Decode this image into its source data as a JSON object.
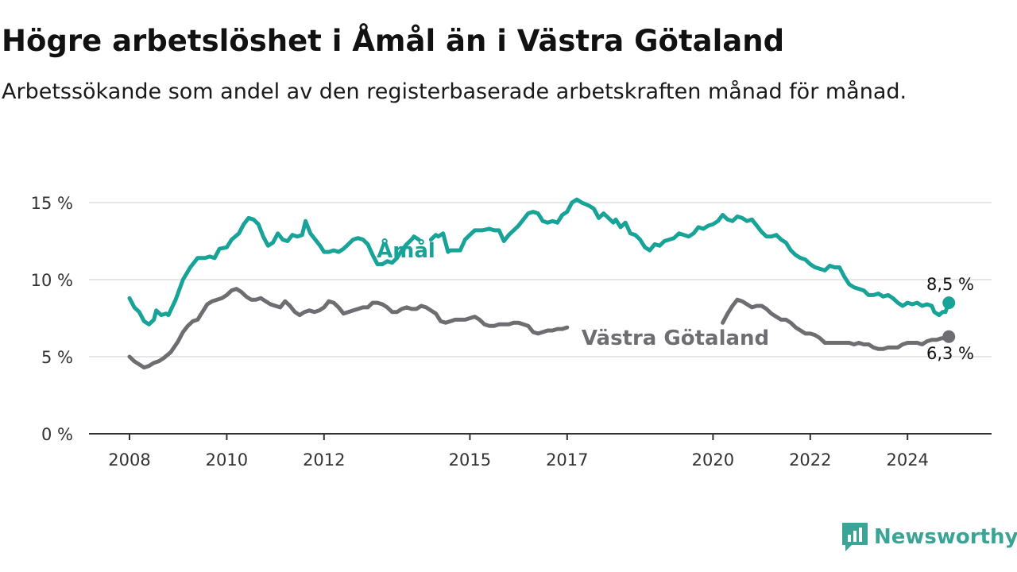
{
  "title": "Högre arbetslöshet i Åmål än i Västra Götaland",
  "subtitle": "Arbetssökande som andel av den registerbaserade arbetskraften månad för månad.",
  "brand": {
    "name": "Newsworthy",
    "icon": "newsworthy-logo-icon",
    "color": "#3aa597"
  },
  "chart_data": {
    "type": "line",
    "ylim": [
      0,
      15
    ],
    "xlim": [
      2008.0,
      2024.9
    ],
    "y_ticks": [
      0,
      5,
      10,
      15
    ],
    "y_tick_labels": [
      "0 %",
      "5 %",
      "10 %",
      "15 %"
    ],
    "x_ticks": [
      2008,
      2010,
      2012,
      2015,
      2017,
      2020,
      2022,
      2024
    ],
    "x_tick_labels": [
      "2008",
      "2010",
      "2012",
      "2015",
      "2017",
      "2020",
      "2022",
      "2024"
    ],
    "grid": "horizontal",
    "legend": "inline labels",
    "series": [
      {
        "name": "Åmål",
        "color": "#17a397",
        "end_label": "8,5 %",
        "points": [
          [
            2008.0,
            8.8
          ],
          [
            2008.1,
            8.2
          ],
          [
            2008.2,
            7.9
          ],
          [
            2008.3,
            7.3
          ],
          [
            2008.4,
            7.1
          ],
          [
            2008.5,
            7.4
          ],
          [
            2008.55,
            8.0
          ],
          [
            2008.65,
            7.7
          ],
          [
            2008.75,
            7.8
          ],
          [
            2008.8,
            7.7
          ],
          [
            2008.95,
            8.7
          ],
          [
            2009.1,
            10.0
          ],
          [
            2009.25,
            10.8
          ],
          [
            2009.4,
            11.4
          ],
          [
            2009.55,
            11.4
          ],
          [
            2009.65,
            11.5
          ],
          [
            2009.75,
            11.4
          ],
          [
            2009.85,
            12.0
          ],
          [
            2010.0,
            12.1
          ],
          [
            2010.1,
            12.6
          ],
          [
            2010.25,
            13.0
          ],
          [
            2010.35,
            13.6
          ],
          [
            2010.45,
            14.0
          ],
          [
            2010.55,
            13.9
          ],
          [
            2010.65,
            13.6
          ],
          [
            2010.75,
            12.8
          ],
          [
            2010.85,
            12.2
          ],
          [
            2010.95,
            12.4
          ],
          [
            2011.05,
            13.0
          ],
          [
            2011.15,
            12.6
          ],
          [
            2011.25,
            12.5
          ],
          [
            2011.35,
            12.9
          ],
          [
            2011.45,
            12.8
          ],
          [
            2011.55,
            12.9
          ],
          [
            2011.62,
            13.8
          ],
          [
            2011.72,
            13.0
          ],
          [
            2011.82,
            12.6
          ],
          [
            2011.92,
            12.2
          ],
          [
            2012.0,
            11.8
          ],
          [
            2012.1,
            11.8
          ],
          [
            2012.2,
            11.9
          ],
          [
            2012.3,
            11.8
          ],
          [
            2012.4,
            12.0
          ],
          [
            2012.5,
            12.3
          ],
          [
            2012.6,
            12.6
          ],
          [
            2012.7,
            12.7
          ],
          [
            2012.8,
            12.6
          ],
          [
            2012.9,
            12.3
          ],
          [
            2013.0,
            11.6
          ],
          [
            2013.1,
            11.0
          ],
          [
            2013.2,
            11.0
          ],
          [
            2013.3,
            11.2
          ],
          [
            2013.4,
            11.1
          ],
          [
            2013.5,
            11.4
          ],
          [
            2013.6,
            11.9
          ],
          [
            2013.7,
            12.3
          ],
          [
            2013.8,
            12.6
          ],
          [
            2013.85,
            12.8
          ],
          [
            2013.95,
            12.6
          ],
          null,
          [
            2014.2,
            12.6
          ],
          [
            2014.3,
            12.9
          ],
          [
            2014.35,
            12.8
          ],
          [
            2014.45,
            13.0
          ],
          [
            2014.55,
            11.8
          ],
          [
            2014.6,
            11.9
          ],
          [
            2014.8,
            11.9
          ],
          [
            2014.9,
            12.6
          ],
          [
            2015.0,
            12.9
          ],
          [
            2015.1,
            13.2
          ],
          [
            2015.25,
            13.2
          ],
          [
            2015.4,
            13.3
          ],
          [
            2015.5,
            13.2
          ],
          [
            2015.6,
            13.2
          ],
          [
            2015.7,
            12.5
          ],
          [
            2015.8,
            12.9
          ],
          [
            2015.9,
            13.2
          ],
          [
            2016.0,
            13.5
          ],
          [
            2016.1,
            13.9
          ],
          [
            2016.2,
            14.3
          ],
          [
            2016.3,
            14.4
          ],
          [
            2016.4,
            14.3
          ],
          [
            2016.5,
            13.8
          ],
          [
            2016.6,
            13.7
          ],
          [
            2016.7,
            13.8
          ],
          [
            2016.8,
            13.7
          ],
          [
            2016.9,
            14.2
          ],
          [
            2017.0,
            14.4
          ],
          [
            2017.1,
            15.0
          ],
          [
            2017.2,
            15.2
          ],
          [
            2017.3,
            15.0
          ],
          [
            2017.45,
            14.8
          ],
          [
            2017.55,
            14.6
          ],
          [
            2017.65,
            14.0
          ],
          [
            2017.75,
            14.3
          ],
          [
            2017.85,
            14.0
          ],
          [
            2017.95,
            13.7
          ],
          [
            2018.0,
            13.9
          ],
          [
            2018.1,
            13.4
          ],
          [
            2018.2,
            13.7
          ],
          [
            2018.3,
            13.0
          ],
          [
            2018.4,
            12.9
          ],
          [
            2018.5,
            12.6
          ],
          [
            2018.6,
            12.1
          ],
          [
            2018.7,
            11.9
          ],
          [
            2018.8,
            12.3
          ],
          [
            2018.9,
            12.2
          ],
          [
            2019.0,
            12.5
          ],
          [
            2019.1,
            12.6
          ],
          [
            2019.2,
            12.7
          ],
          [
            2019.3,
            13.0
          ],
          [
            2019.4,
            12.9
          ],
          [
            2019.5,
            12.8
          ],
          [
            2019.6,
            13.0
          ],
          [
            2019.7,
            13.4
          ],
          [
            2019.8,
            13.3
          ],
          [
            2019.9,
            13.5
          ],
          [
            2020.0,
            13.6
          ],
          [
            2020.1,
            13.8
          ],
          [
            2020.2,
            14.2
          ],
          [
            2020.3,
            13.9
          ],
          [
            2020.4,
            13.8
          ],
          [
            2020.5,
            14.1
          ],
          [
            2020.6,
            14.0
          ],
          [
            2020.7,
            13.8
          ],
          [
            2020.8,
            13.9
          ],
          [
            2020.9,
            13.5
          ],
          [
            2021.0,
            13.1
          ],
          [
            2021.1,
            12.8
          ],
          [
            2021.2,
            12.8
          ],
          [
            2021.3,
            12.9
          ],
          [
            2021.4,
            12.6
          ],
          [
            2021.5,
            12.4
          ],
          [
            2021.6,
            11.9
          ],
          [
            2021.7,
            11.6
          ],
          [
            2021.8,
            11.4
          ],
          [
            2021.9,
            11.3
          ],
          [
            2022.0,
            11.0
          ],
          [
            2022.1,
            10.8
          ],
          [
            2022.2,
            10.7
          ],
          [
            2022.3,
            10.6
          ],
          [
            2022.4,
            10.9
          ],
          [
            2022.5,
            10.8
          ],
          [
            2022.6,
            10.8
          ],
          [
            2022.7,
            10.2
          ],
          [
            2022.8,
            9.7
          ],
          [
            2022.9,
            9.5
          ],
          [
            2023.0,
            9.4
          ],
          [
            2023.1,
            9.3
          ],
          [
            2023.2,
            9.0
          ],
          [
            2023.3,
            9.0
          ],
          [
            2023.4,
            9.1
          ],
          [
            2023.5,
            8.9
          ],
          [
            2023.6,
            9.0
          ],
          [
            2023.7,
            8.8
          ],
          [
            2023.8,
            8.5
          ],
          [
            2023.9,
            8.3
          ],
          [
            2024.0,
            8.5
          ],
          [
            2024.1,
            8.4
          ],
          [
            2024.2,
            8.5
          ],
          [
            2024.3,
            8.3
          ],
          [
            2024.4,
            8.4
          ],
          [
            2024.5,
            8.3
          ],
          [
            2024.55,
            7.9
          ],
          [
            2024.65,
            7.7
          ],
          [
            2024.72,
            7.9
          ],
          [
            2024.78,
            7.9
          ],
          [
            2024.85,
            8.5
          ]
        ]
      },
      {
        "name": "Västra Götaland",
        "color": "#6d6d72",
        "end_label": "6,3 %",
        "points": [
          [
            2008.0,
            5.0
          ],
          [
            2008.1,
            4.7
          ],
          [
            2008.2,
            4.5
          ],
          [
            2008.3,
            4.3
          ],
          [
            2008.4,
            4.4
          ],
          [
            2008.5,
            4.6
          ],
          [
            2008.6,
            4.7
          ],
          [
            2008.7,
            4.9
          ],
          [
            2008.85,
            5.3
          ],
          [
            2009.0,
            6.0
          ],
          [
            2009.1,
            6.6
          ],
          [
            2009.2,
            7.0
          ],
          [
            2009.3,
            7.3
          ],
          [
            2009.4,
            7.4
          ],
          [
            2009.5,
            7.9
          ],
          [
            2009.6,
            8.4
          ],
          [
            2009.7,
            8.6
          ],
          [
            2009.8,
            8.7
          ],
          [
            2009.9,
            8.8
          ],
          [
            2010.0,
            9.0
          ],
          [
            2010.1,
            9.3
          ],
          [
            2010.2,
            9.4
          ],
          [
            2010.3,
            9.2
          ],
          [
            2010.4,
            8.9
          ],
          [
            2010.5,
            8.7
          ],
          [
            2010.6,
            8.7
          ],
          [
            2010.7,
            8.8
          ],
          [
            2010.8,
            8.6
          ],
          [
            2010.9,
            8.4
          ],
          [
            2011.0,
            8.3
          ],
          [
            2011.1,
            8.2
          ],
          [
            2011.2,
            8.6
          ],
          [
            2011.3,
            8.3
          ],
          [
            2011.4,
            7.9
          ],
          [
            2011.5,
            7.7
          ],
          [
            2011.6,
            7.9
          ],
          [
            2011.7,
            8.0
          ],
          [
            2011.8,
            7.9
          ],
          [
            2011.9,
            8.0
          ],
          [
            2012.0,
            8.2
          ],
          [
            2012.1,
            8.6
          ],
          [
            2012.2,
            8.5
          ],
          [
            2012.3,
            8.2
          ],
          [
            2012.4,
            7.8
          ],
          [
            2012.5,
            7.9
          ],
          [
            2012.6,
            8.0
          ],
          [
            2012.7,
            8.1
          ],
          [
            2012.8,
            8.2
          ],
          [
            2012.9,
            8.2
          ],
          [
            2013.0,
            8.5
          ],
          [
            2013.1,
            8.5
          ],
          [
            2013.2,
            8.4
          ],
          [
            2013.3,
            8.2
          ],
          [
            2013.4,
            7.9
          ],
          [
            2013.5,
            7.9
          ],
          [
            2013.6,
            8.1
          ],
          [
            2013.7,
            8.2
          ],
          [
            2013.8,
            8.1
          ],
          [
            2013.9,
            8.1
          ],
          [
            2014.0,
            8.3
          ],
          [
            2014.1,
            8.2
          ],
          [
            2014.2,
            8.0
          ],
          [
            2014.3,
            7.8
          ],
          [
            2014.4,
            7.3
          ],
          [
            2014.5,
            7.2
          ],
          [
            2014.6,
            7.3
          ],
          [
            2014.7,
            7.4
          ],
          [
            2014.8,
            7.4
          ],
          [
            2014.9,
            7.4
          ],
          [
            2015.0,
            7.5
          ],
          [
            2015.1,
            7.6
          ],
          [
            2015.2,
            7.4
          ],
          [
            2015.3,
            7.1
          ],
          [
            2015.4,
            7.0
          ],
          [
            2015.5,
            7.0
          ],
          [
            2015.6,
            7.1
          ],
          [
            2015.7,
            7.1
          ],
          [
            2015.8,
            7.1
          ],
          [
            2015.9,
            7.2
          ],
          [
            2016.0,
            7.2
          ],
          [
            2016.1,
            7.1
          ],
          [
            2016.2,
            7.0
          ],
          [
            2016.3,
            6.6
          ],
          [
            2016.4,
            6.5
          ],
          [
            2016.5,
            6.6
          ],
          [
            2016.6,
            6.7
          ],
          [
            2016.7,
            6.7
          ],
          [
            2016.8,
            6.8
          ],
          [
            2016.9,
            6.8
          ],
          [
            2017.0,
            6.9
          ],
          null,
          [
            2020.2,
            7.2
          ],
          [
            2020.3,
            7.8
          ],
          [
            2020.4,
            8.3
          ],
          [
            2020.5,
            8.7
          ],
          [
            2020.6,
            8.6
          ],
          [
            2020.7,
            8.4
          ],
          [
            2020.8,
            8.2
          ],
          [
            2020.9,
            8.3
          ],
          [
            2021.0,
            8.3
          ],
          [
            2021.1,
            8.1
          ],
          [
            2021.2,
            7.8
          ],
          [
            2021.3,
            7.6
          ],
          [
            2021.4,
            7.4
          ],
          [
            2021.5,
            7.4
          ],
          [
            2021.6,
            7.2
          ],
          [
            2021.7,
            6.9
          ],
          [
            2021.8,
            6.7
          ],
          [
            2021.9,
            6.5
          ],
          [
            2022.0,
            6.5
          ],
          [
            2022.1,
            6.4
          ],
          [
            2022.2,
            6.2
          ],
          [
            2022.3,
            5.9
          ],
          [
            2022.4,
            5.9
          ],
          [
            2022.5,
            5.9
          ],
          [
            2022.6,
            5.9
          ],
          [
            2022.7,
            5.9
          ],
          [
            2022.8,
            5.9
          ],
          [
            2022.9,
            5.8
          ],
          [
            2023.0,
            5.9
          ],
          [
            2023.1,
            5.8
          ],
          [
            2023.2,
            5.8
          ],
          [
            2023.3,
            5.6
          ],
          [
            2023.4,
            5.5
          ],
          [
            2023.5,
            5.5
          ],
          [
            2023.6,
            5.6
          ],
          [
            2023.7,
            5.6
          ],
          [
            2023.8,
            5.6
          ],
          [
            2023.9,
            5.8
          ],
          [
            2024.0,
            5.9
          ],
          [
            2024.1,
            5.9
          ],
          [
            2024.2,
            5.9
          ],
          [
            2024.3,
            5.8
          ],
          [
            2024.4,
            6.0
          ],
          [
            2024.5,
            6.1
          ],
          [
            2024.6,
            6.1
          ],
          [
            2024.7,
            6.2
          ],
          [
            2024.8,
            6.2
          ],
          [
            2024.85,
            6.3
          ]
        ]
      }
    ]
  }
}
